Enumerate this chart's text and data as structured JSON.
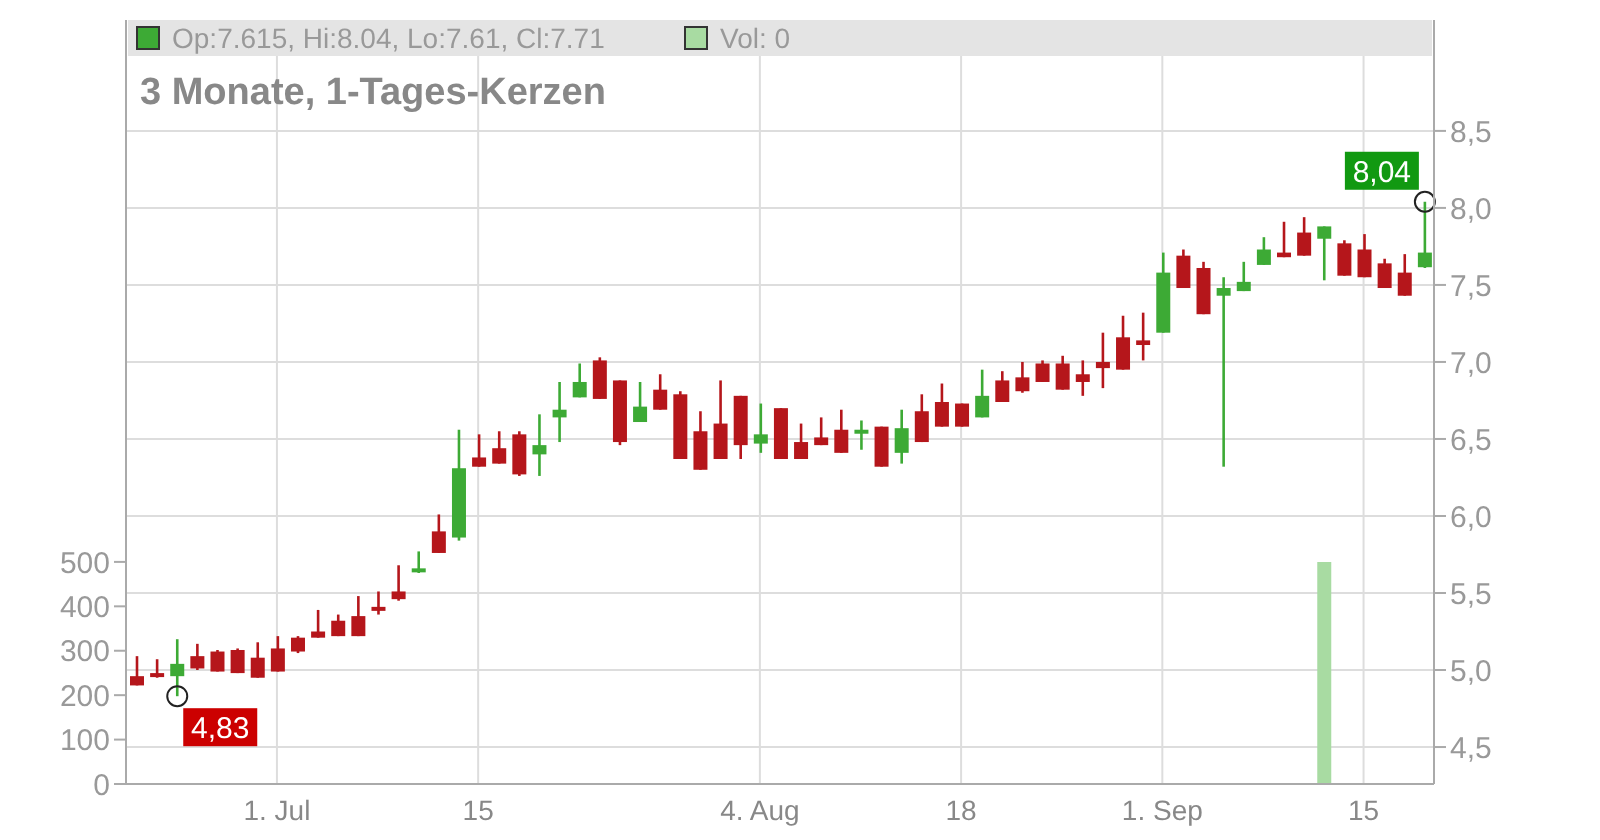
{
  "chart_data": {
    "type": "candlestick",
    "title": "3 Monate, 1-Tages-Kerzen",
    "annotations": [
      "Op:7.615, Hi:8.04, Lo:7.61, Cl:7.71",
      "Vol: 0",
      "4,83",
      "8,04"
    ],
    "categories": [
      null,
      null,
      null,
      null,
      null,
      null,
      null,
      "1. Jul",
      null,
      null,
      null,
      null,
      null,
      null,
      null,
      null,
      null,
      "15",
      null,
      null,
      null,
      null,
      null,
      null,
      null,
      null,
      null,
      null,
      null,
      null,
      null,
      "4. Aug",
      null,
      null,
      null,
      null,
      null,
      null,
      null,
      null,
      null,
      "18",
      null,
      null,
      null,
      null,
      null,
      null,
      null,
      null,
      null,
      "1. Sep",
      null,
      null,
      null,
      null,
      null,
      null,
      null,
      null,
      null,
      "15",
      null,
      null,
      null
    ],
    "ohlc": [
      [
        4.96,
        5.09,
        4.9,
        4.9
      ],
      [
        4.98,
        5.07,
        4.95,
        4.96
      ],
      [
        4.96,
        5.2,
        4.83,
        5.04
      ],
      [
        5.09,
        5.17,
        5.0,
        5.01
      ],
      [
        5.12,
        5.13,
        4.99,
        4.99
      ],
      [
        5.13,
        5.14,
        4.98,
        4.98
      ],
      [
        5.08,
        5.18,
        4.95,
        4.95
      ],
      [
        5.14,
        5.22,
        4.99,
        4.99
      ],
      [
        5.21,
        5.22,
        5.11,
        5.12
      ],
      [
        5.25,
        5.39,
        5.21,
        5.21
      ],
      [
        5.32,
        5.36,
        5.22,
        5.22
      ],
      [
        5.35,
        5.48,
        5.22,
        5.22
      ],
      [
        5.41,
        5.51,
        5.36,
        5.4
      ],
      [
        5.51,
        5.68,
        5.45,
        5.46
      ],
      [
        5.64,
        5.77,
        5.63,
        5.66
      ],
      [
        5.9,
        6.01,
        5.76,
        5.76
      ],
      [
        5.86,
        6.56,
        5.84,
        6.31
      ],
      [
        6.38,
        6.53,
        6.32,
        6.32
      ],
      [
        6.44,
        6.55,
        6.34,
        6.34
      ],
      [
        6.53,
        6.55,
        6.26,
        6.27
      ],
      [
        6.4,
        6.66,
        6.26,
        6.46
      ],
      [
        6.64,
        6.87,
        6.48,
        6.69
      ],
      [
        6.77,
        6.99,
        6.77,
        6.87
      ],
      [
        7.01,
        7.03,
        6.76,
        6.76
      ],
      [
        6.88,
        6.88,
        6.46,
        6.48
      ],
      [
        6.61,
        6.87,
        6.61,
        6.71
      ],
      [
        6.82,
        6.92,
        6.69,
        6.69
      ],
      [
        6.79,
        6.81,
        6.37,
        6.37
      ],
      [
        6.55,
        6.68,
        6.3,
        6.3
      ],
      [
        6.6,
        6.88,
        6.37,
        6.37
      ],
      [
        6.78,
        6.78,
        6.37,
        6.46
      ],
      [
        6.47,
        6.73,
        6.41,
        6.53
      ],
      [
        6.7,
        6.7,
        6.37,
        6.37
      ],
      [
        6.48,
        6.6,
        6.37,
        6.37
      ],
      [
        6.51,
        6.64,
        6.46,
        6.46
      ],
      [
        6.56,
        6.69,
        6.41,
        6.41
      ],
      [
        6.55,
        6.62,
        6.43,
        6.56
      ],
      [
        6.58,
        6.58,
        6.32,
        6.32
      ],
      [
        6.41,
        6.69,
        6.34,
        6.57
      ],
      [
        6.68,
        6.79,
        6.48,
        6.48
      ],
      [
        6.74,
        6.86,
        6.58,
        6.58
      ],
      [
        6.73,
        6.73,
        6.58,
        6.58
      ],
      [
        6.64,
        6.95,
        6.64,
        6.78
      ],
      [
        6.88,
        6.94,
        6.74,
        6.74
      ],
      [
        6.9,
        7.0,
        6.8,
        6.81
      ],
      [
        6.99,
        7.01,
        6.87,
        6.87
      ],
      [
        6.99,
        7.04,
        6.82,
        6.82
      ],
      [
        6.92,
        7.01,
        6.78,
        6.87
      ],
      [
        7.0,
        7.19,
        6.83,
        6.96
      ],
      [
        7.16,
        7.3,
        6.95,
        6.95
      ],
      [
        7.14,
        7.32,
        7.01,
        7.11
      ],
      [
        7.19,
        7.71,
        7.19,
        7.58
      ],
      [
        7.69,
        7.73,
        7.48,
        7.48
      ],
      [
        7.61,
        7.65,
        7.31,
        7.31
      ],
      [
        7.43,
        7.55,
        6.32,
        7.48
      ],
      [
        7.46,
        7.65,
        7.46,
        7.52
      ],
      [
        7.63,
        7.81,
        7.63,
        7.73
      ],
      [
        7.71,
        7.91,
        7.68,
        7.68
      ],
      [
        7.84,
        7.94,
        7.69,
        7.69
      ],
      [
        7.8,
        7.88,
        7.53,
        7.88
      ],
      [
        7.77,
        7.79,
        7.56,
        7.56
      ],
      [
        7.73,
        7.83,
        7.55,
        7.55
      ],
      [
        7.64,
        7.67,
        7.48,
        7.48
      ],
      [
        7.58,
        7.7,
        7.43,
        7.43
      ],
      [
        7.615,
        8.04,
        7.61,
        7.71
      ]
    ],
    "colors": [
      "#b5161b",
      "#b5161b",
      "#3daa35",
      "#b5161b",
      "#b5161b",
      "#b5161b",
      "#b5161b",
      "#b5161b",
      "#b5161b",
      "#b5161b",
      "#b5161b",
      "#b5161b",
      "#b5161b",
      "#b5161b",
      "#3daa35",
      "#b5161b",
      "#3daa35",
      "#b5161b",
      "#b5161b",
      "#b5161b",
      "#3daa35",
      "#3daa35",
      "#3daa35",
      "#b5161b",
      "#b5161b",
      "#3daa35",
      "#b5161b",
      "#b5161b",
      "#b5161b",
      "#b5161b",
      "#b5161b",
      "#3daa35",
      "#b5161b",
      "#b5161b",
      "#b5161b",
      "#b5161b",
      "#3daa35",
      "#b5161b",
      "#3daa35",
      "#b5161b",
      "#b5161b",
      "#b5161b",
      "#3daa35",
      "#b5161b",
      "#b5161b",
      "#b5161b",
      "#b5161b",
      "#b5161b",
      "#b5161b",
      "#b5161b",
      "#b5161b",
      "#3daa35",
      "#b5161b",
      "#b5161b",
      "#3daa35",
      "#3daa35",
      "#3daa35",
      "#b5161b",
      "#b5161b",
      "#3daa35",
      "#b5161b",
      "#b5161b",
      "#b5161b",
      "#b5161b",
      "#3daa35"
    ],
    "series": [
      {
        "type": "bar",
        "axis": "y2",
        "color": "#a8dba2",
        "values": [
          0,
          0,
          0,
          0,
          0,
          0,
          0,
          0,
          0,
          0,
          0,
          0,
          0,
          0,
          0,
          0,
          0,
          0,
          0,
          0,
          0,
          0,
          0,
          0,
          0,
          0,
          0,
          0,
          0,
          0,
          0,
          0,
          0,
          0,
          0,
          0,
          0,
          0,
          0,
          0,
          0,
          0,
          0,
          0,
          0,
          0,
          0,
          0,
          0,
          0,
          0,
          0,
          0,
          0,
          0,
          0,
          0,
          0,
          0,
          500,
          0,
          0,
          0,
          0,
          0
        ]
      }
    ],
    "ylim": [
      4.26,
      9.22
    ],
    "yticks": [
      {
        "value": 4.5,
        "label": "4,5"
      },
      {
        "value": 5.0,
        "label": "5,0"
      },
      {
        "value": 5.5,
        "label": "5,5"
      },
      {
        "value": 6.0,
        "label": "6,0"
      },
      {
        "value": 6.5,
        "label": "6,5"
      },
      {
        "value": 7.0,
        "label": "7,0"
      },
      {
        "value": 7.5,
        "label": "7,5"
      },
      {
        "value": 8.0,
        "label": "8,0"
      },
      {
        "value": 8.5,
        "label": "8,5"
      }
    ],
    "y2lim": [
      0,
      1720
    ],
    "y2ticks": [
      0,
      100,
      200,
      300,
      400,
      500
    ],
    "grid": true
  }
}
